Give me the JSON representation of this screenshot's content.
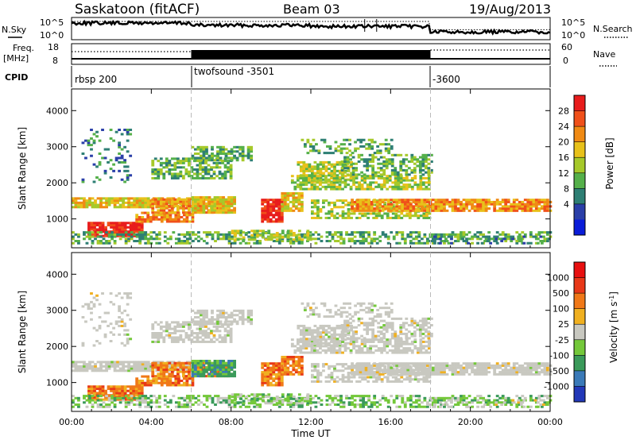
{
  "header": {
    "station": "Saskatoon (fitACF)",
    "beam": "Beam 03",
    "date": "19/Aug/2013"
  },
  "chart_data": [
    {
      "type": "line",
      "panel": "noise",
      "left_label": "N.Sky",
      "right_label": "N.Search",
      "left_ticks": [
        "10^5",
        "10^0"
      ],
      "right_ticks": [
        "10^5",
        "10^0"
      ]
    },
    {
      "type": "line",
      "panel": "frequency",
      "left_label_lines": [
        "Freq.",
        "[MHz]"
      ],
      "right_label": "Nave",
      "left_ticks": [
        "18",
        "8"
      ],
      "right_ticks": [
        "60",
        "0"
      ]
    },
    {
      "type": "table",
      "panel": "cpid",
      "label": "CPID",
      "segments": [
        {
          "start_hour": 0,
          "text": "rbsp 200"
        },
        {
          "start_hour": 6,
          "text": "twofsound -3501"
        },
        {
          "start_hour": 18,
          "text": "-3600"
        }
      ]
    },
    {
      "type": "heatmap",
      "panel": "power",
      "ylabel": "Slant Range [km]",
      "yticks": [
        1000,
        2000,
        3000,
        4000
      ],
      "ylim": [
        200,
        4600
      ],
      "colorbar_label": "Power [dB]",
      "colorbar_ticks": [
        "28",
        "24",
        "20",
        "16",
        "12",
        "8",
        "4"
      ],
      "colors": [
        "#0a1cd8",
        "#2a3fa8",
        "#2e7f74",
        "#55b04a",
        "#a6c92a",
        "#e8c11a",
        "#f08a14",
        "#f0501a",
        "#e81c1c"
      ]
    },
    {
      "type": "heatmap",
      "panel": "velocity",
      "ylabel": "Slant Range [km]",
      "yticks": [
        1000,
        2000,
        3000,
        4000
      ],
      "ylim": [
        200,
        4600
      ],
      "colorbar_label": "Velocity [m s^-1]",
      "colorbar_ticks": [
        "1000",
        "500",
        "100",
        "25",
        "-25",
        "-100",
        "-500",
        "-1000"
      ],
      "colors": [
        "#2238b8",
        "#3a7ab8",
        "#3a9a5a",
        "#74c83a",
        "#c8c8c0",
        "#f0b020",
        "#f07818",
        "#e83818",
        "#e81010"
      ]
    }
  ],
  "x_axis": {
    "label": "Time UT",
    "ticks": [
      "00:00",
      "04:00",
      "08:00",
      "12:00",
      "16:00",
      "20:00",
      "00:00"
    ],
    "range_hours": [
      0,
      24
    ]
  }
}
